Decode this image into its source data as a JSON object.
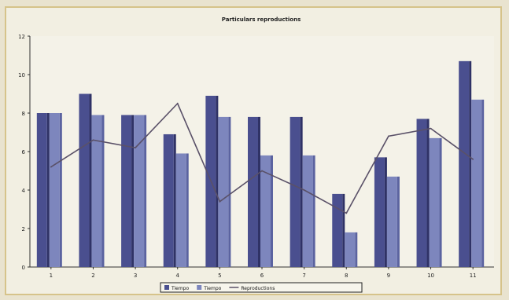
{
  "chart_data": {
    "type": "bar",
    "title": "Particulars reproductions",
    "xlabel": "",
    "ylabel": "",
    "categories": [
      "1",
      "2",
      "3",
      "4",
      "5",
      "6",
      "7",
      "8",
      "9",
      "10",
      "11"
    ],
    "ylim": [
      0,
      12
    ],
    "yticks": [
      0,
      2,
      4,
      6,
      8,
      10,
      12
    ],
    "grid": false,
    "legend_position": "bottom",
    "series": [
      {
        "name": "Tiempo",
        "kind": "bar",
        "color": "#4a4f8f",
        "values": [
          8.0,
          9.0,
          7.9,
          6.9,
          8.9,
          7.8,
          7.8,
          3.8,
          5.7,
          7.7,
          10.7
        ]
      },
      {
        "name": "Tiempo",
        "kind": "bar",
        "color": "#7d86bd",
        "values": [
          8.0,
          7.9,
          7.9,
          5.9,
          7.8,
          5.8,
          5.8,
          1.8,
          4.7,
          6.7,
          8.7
        ]
      },
      {
        "name": "Reproductions",
        "kind": "line",
        "color": "#5a5168",
        "values": [
          5.2,
          6.6,
          6.2,
          8.5,
          3.4,
          5.0,
          4.0,
          2.8,
          6.8,
          7.2,
          5.6
        ]
      }
    ]
  }
}
